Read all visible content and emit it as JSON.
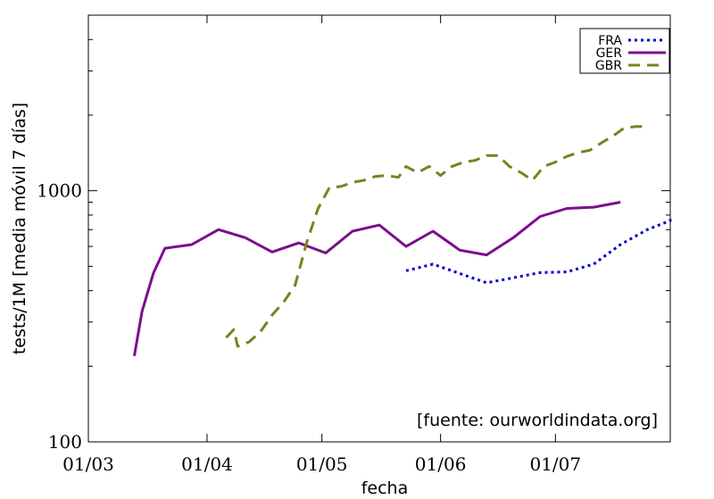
{
  "chart_data": {
    "type": "line",
    "xlabel": "fecha",
    "ylabel": "tests/1M [media móvil 7 días]",
    "source_note": "[fuente:  ourworldindata.org]",
    "y_scale": "log",
    "ylim": [
      100,
      5000
    ],
    "xlim": [
      "2020-03-01",
      "2020-07-31"
    ],
    "x_ticks": [
      {
        "date": "2020-03-01",
        "label": "01/03"
      },
      {
        "date": "2020-04-01",
        "label": "01/04"
      },
      {
        "date": "2020-05-01",
        "label": "01/05"
      },
      {
        "date": "2020-06-01",
        "label": "01/06"
      },
      {
        "date": "2020-07-01",
        "label": "01/07"
      }
    ],
    "y_ticks": [
      {
        "value": 100,
        "label": "100"
      },
      {
        "value": 1000,
        "label": "1000"
      }
    ],
    "grid": false,
    "legend_position": "top-right",
    "series": [
      {
        "name": "FRA",
        "color": "#0000cc",
        "dash": "dotted",
        "points": [
          [
            "2020-05-23",
            480
          ],
          [
            "2020-05-30",
            510
          ],
          [
            "2020-06-06",
            468
          ],
          [
            "2020-06-13",
            430
          ],
          [
            "2020-06-20",
            450
          ],
          [
            "2020-06-27",
            472
          ],
          [
            "2020-07-04",
            475
          ],
          [
            "2020-07-11",
            510
          ],
          [
            "2020-07-18",
            610
          ],
          [
            "2020-07-25",
            700
          ],
          [
            "2020-08-01",
            760
          ],
          [
            "2020-08-08",
            790
          ]
        ]
      },
      {
        "name": "GER",
        "color": "#7b0f8c",
        "dash": "solid",
        "points": [
          [
            "2020-03-13",
            220
          ],
          [
            "2020-03-15",
            330
          ],
          [
            "2020-03-18",
            470
          ],
          [
            "2020-03-21",
            590
          ],
          [
            "2020-03-28",
            610
          ],
          [
            "2020-04-04",
            700
          ],
          [
            "2020-04-11",
            650
          ],
          [
            "2020-04-18",
            570
          ],
          [
            "2020-04-25",
            620
          ],
          [
            "2020-05-02",
            565
          ],
          [
            "2020-05-09",
            690
          ],
          [
            "2020-05-16",
            730
          ],
          [
            "2020-05-23",
            600
          ],
          [
            "2020-05-30",
            690
          ],
          [
            "2020-06-06",
            580
          ],
          [
            "2020-06-13",
            555
          ],
          [
            "2020-06-20",
            650
          ],
          [
            "2020-06-27",
            790
          ],
          [
            "2020-07-04",
            850
          ],
          [
            "2020-07-11",
            860
          ],
          [
            "2020-07-18",
            900
          ]
        ]
      },
      {
        "name": "GBR",
        "color": "#7f7f20",
        "dash": "dashed",
        "points": [
          [
            "2020-04-06",
            260
          ],
          [
            "2020-04-08",
            280
          ],
          [
            "2020-04-09",
            240
          ],
          [
            "2020-04-12",
            250
          ],
          [
            "2020-04-15",
            275
          ],
          [
            "2020-04-18",
            320
          ],
          [
            "2020-04-21",
            360
          ],
          [
            "2020-04-24",
            420
          ],
          [
            "2020-04-27",
            620
          ],
          [
            "2020-04-30",
            850
          ],
          [
            "2020-05-03",
            1030
          ],
          [
            "2020-05-06",
            1040
          ],
          [
            "2020-05-09",
            1080
          ],
          [
            "2020-05-12",
            1100
          ],
          [
            "2020-05-15",
            1140
          ],
          [
            "2020-05-18",
            1150
          ],
          [
            "2020-05-21",
            1130
          ],
          [
            "2020-05-23",
            1250
          ],
          [
            "2020-05-26",
            1180
          ],
          [
            "2020-05-29",
            1250
          ],
          [
            "2020-06-01",
            1150
          ],
          [
            "2020-06-04",
            1250
          ],
          [
            "2020-06-07",
            1300
          ],
          [
            "2020-06-10",
            1320
          ],
          [
            "2020-06-13",
            1380
          ],
          [
            "2020-06-16",
            1380
          ],
          [
            "2020-06-19",
            1250
          ],
          [
            "2020-06-22",
            1180
          ],
          [
            "2020-06-25",
            1100
          ],
          [
            "2020-06-28",
            1250
          ],
          [
            "2020-07-01",
            1300
          ],
          [
            "2020-07-04",
            1370
          ],
          [
            "2020-07-07",
            1420
          ],
          [
            "2020-07-10",
            1450
          ],
          [
            "2020-07-13",
            1550
          ],
          [
            "2020-07-16",
            1650
          ],
          [
            "2020-07-19",
            1780
          ],
          [
            "2020-07-22",
            1800
          ],
          [
            "2020-07-25",
            1800
          ]
        ]
      }
    ]
  }
}
